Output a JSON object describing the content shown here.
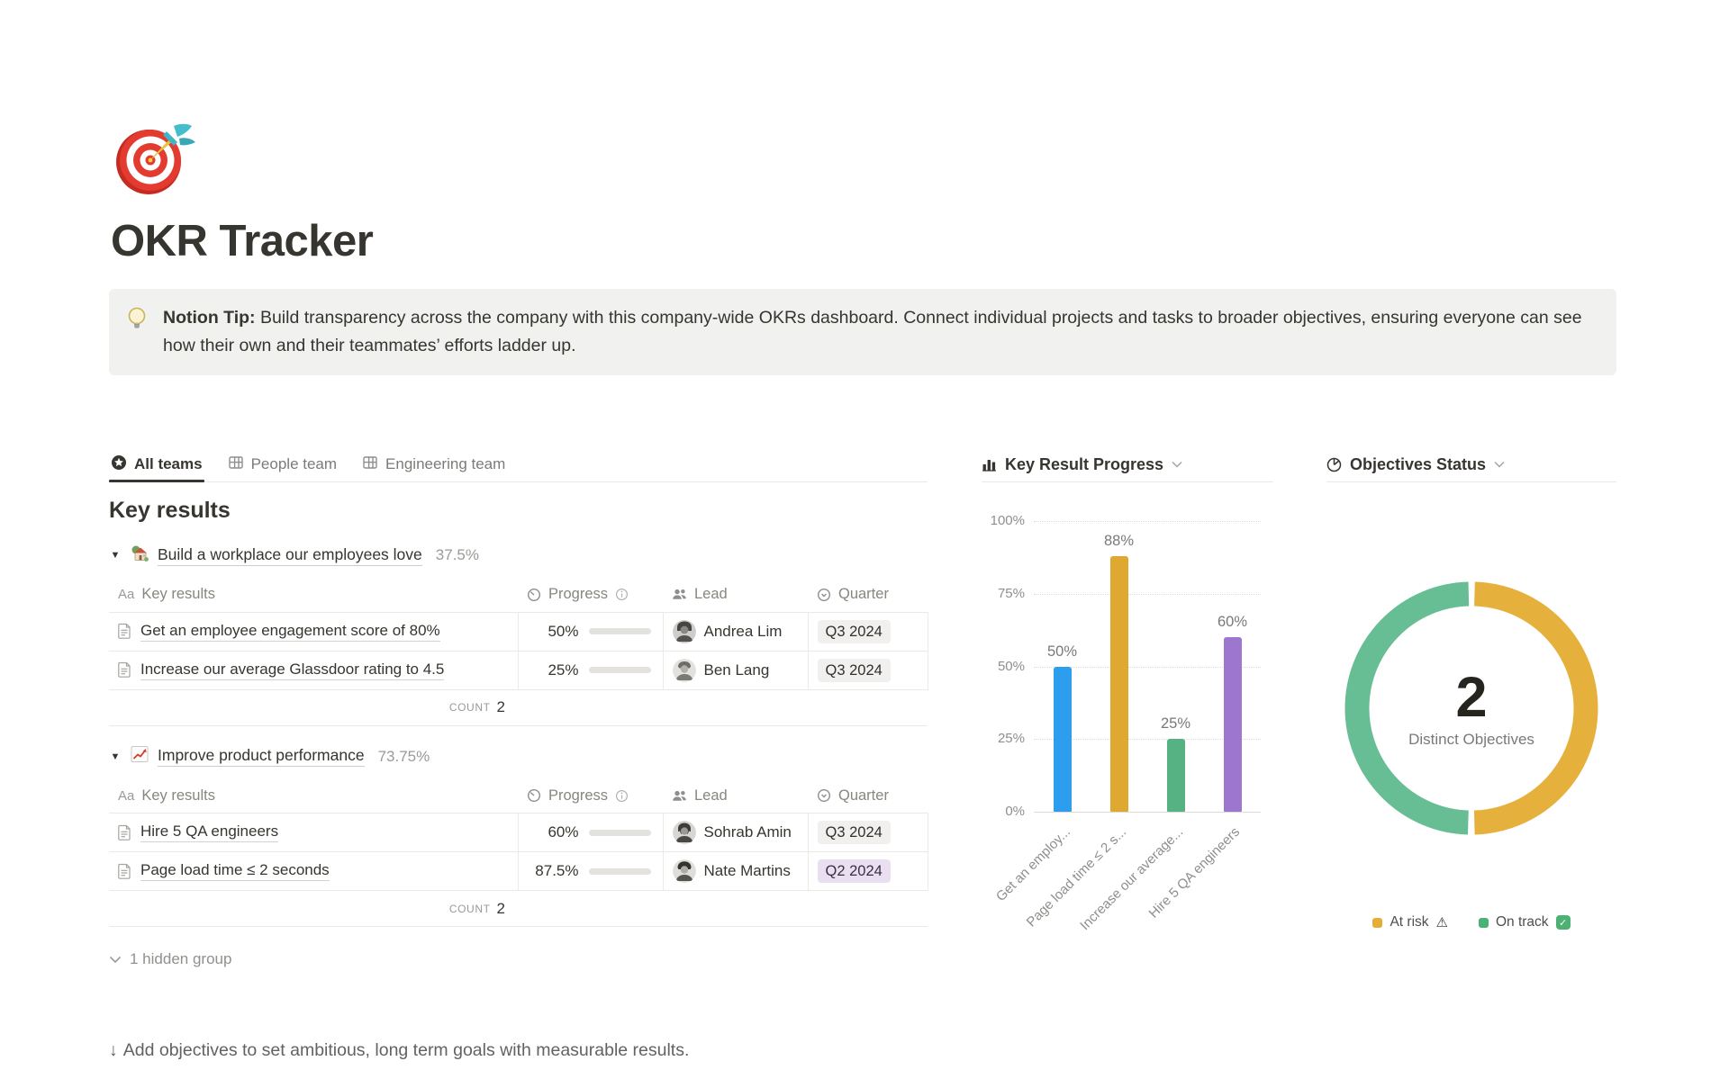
{
  "page": {
    "icon": "dart-target",
    "title": "OKR Tracker",
    "callout": {
      "icon": "light-bulb",
      "bold": "Notion Tip:",
      "text": " Build transparency across the company with this company-wide OKRs dashboard. Connect individual projects and tasks to broader objectives, ensuring everyone can see how their own and their teammates’ efforts ladder up."
    }
  },
  "tabs": [
    {
      "label": "All teams",
      "icon": "star-circle-icon",
      "active": true
    },
    {
      "label": "People team",
      "icon": "table-icon",
      "active": false
    },
    {
      "label": "Engineering team",
      "icon": "table-icon",
      "active": false
    }
  ],
  "key_results": {
    "heading": "Key results",
    "columns": {
      "name": "Key results",
      "name_icon": "Aa",
      "progress": "Progress",
      "lead": "Lead",
      "quarter": "Quarter"
    },
    "groups": [
      {
        "emoji": "house-garden",
        "title": "Build a workplace our employees love",
        "percent": "37.5%",
        "rows": [
          {
            "name": "Get an employee engagement score of 80%",
            "progress": "50%",
            "progress_value": 50,
            "lead": "Andrea Lim",
            "quarter": "Q3 2024",
            "quarter_color": "gray"
          },
          {
            "name": "Increase our average Glassdoor rating to 4.5",
            "progress": "25%",
            "progress_value": 25,
            "lead": "Ben Lang",
            "quarter": "Q3 2024",
            "quarter_color": "gray"
          }
        ],
        "count_label": "COUNT",
        "count": "2"
      },
      {
        "emoji": "chart-increasing",
        "title": "Improve product performance",
        "percent": "73.75%",
        "rows": [
          {
            "name": "Hire 5 QA engineers",
            "progress": "60%",
            "progress_value": 60,
            "lead": "Sohrab Amin",
            "quarter": "Q3 2024",
            "quarter_color": "gray"
          },
          {
            "name": "Page load time ≤ 2 seconds",
            "progress": "87.5%",
            "progress_value": 87.5,
            "lead": "Nate Martins",
            "quarter": "Q2 2024",
            "quarter_color": "purple"
          }
        ],
        "count_label": "COUNT",
        "count": "2"
      }
    ],
    "hidden_group": "1 hidden group"
  },
  "footer_note": {
    "arrow": "↓",
    "text": "Add objectives to set ambitious, long term goals with measurable results."
  },
  "chart_data": [
    {
      "type": "bar",
      "title": "Key Result Progress",
      "categories": [
        "Get an employee engagement score of 80%",
        "Page load time ≤ 2 seconds",
        "Increase our average Glassdoor rating to 4.5",
        "Hire 5 QA engineers"
      ],
      "tick_labels": [
        "Get an employ...",
        "Page load time ≤ 2 s...",
        "Increase our average...",
        "Hire 5 QA engineers"
      ],
      "values": [
        50,
        88,
        25,
        60
      ],
      "value_labels": [
        "50%",
        "88%",
        "25%",
        "60%"
      ],
      "colors": [
        "#2D9DEE",
        "#DFA831",
        "#57B283",
        "#9D76D0"
      ],
      "xlabel": "",
      "ylabel": "",
      "ylim": [
        0,
        100
      ],
      "yticks": [
        "0%",
        "25%",
        "50%",
        "75%",
        "100%"
      ],
      "grid": "horizontal-dotted",
      "legend_position": "none"
    },
    {
      "type": "pie",
      "title": "Objectives Status",
      "center_value": "2",
      "center_label": "Distinct Objectives",
      "slices": [
        {
          "label": "At risk",
          "value": 1,
          "color": "#E5B13C",
          "legend_color": "#E5AC38",
          "legend_glyph": "warning"
        },
        {
          "label": "On track",
          "value": 1,
          "color": "#67BE94",
          "legend_color": "#4AB179",
          "legend_glyph": "check"
        }
      ],
      "legend_position": "bottom"
    }
  ]
}
